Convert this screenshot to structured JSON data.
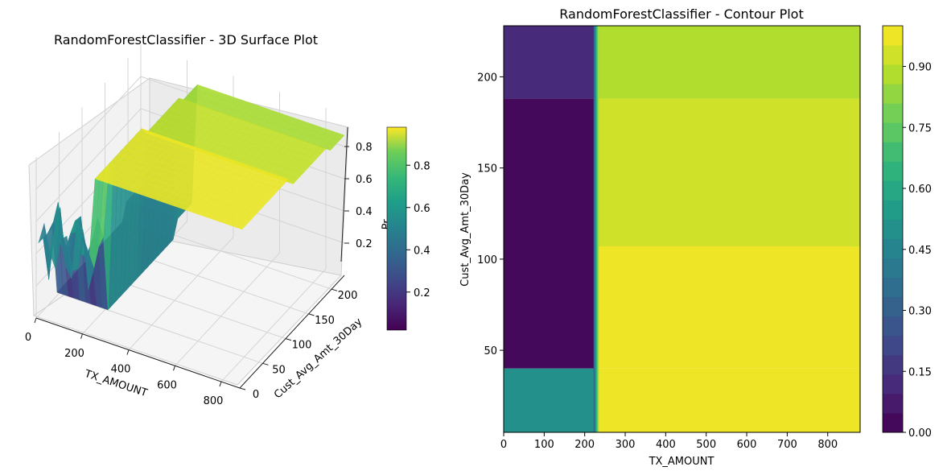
{
  "figure": {
    "left_title": "RandomForestClassifier - 3D Surface Plot",
    "right_title": "RandomForestClassifier - Contour Plot"
  },
  "chart_data": [
    {
      "type": "surface3d",
      "title": "RandomForestClassifier - 3D Surface Plot",
      "xlabel": "TX_AMOUNT",
      "ylabel": "Cust_Avg_Amt_30Day",
      "zlabel": "Pr",
      "colormap": "viridis",
      "xlim": [
        0,
        880
      ],
      "ylim": [
        5,
        228
      ],
      "zlim": [
        0,
        1
      ],
      "x_ticks": [
        "0",
        "200",
        "400",
        "600",
        "800"
      ],
      "y_ticks": [
        "0",
        "50",
        "100",
        "150",
        "200"
      ],
      "z_ticks": [
        "0.2",
        "0.4",
        "0.6",
        "0.8"
      ],
      "colorbar_ticks": [
        "0.2",
        "0.4",
        "0.6",
        "0.8"
      ],
      "colorbar_range": [
        0.02,
        0.98
      ]
    },
    {
      "type": "contour",
      "title": "RandomForestClassifier - Contour Plot",
      "xlabel": "TX_AMOUNT",
      "ylabel": "Cust_Avg_Amt_30Day",
      "colormap": "viridis",
      "xlim": [
        0,
        880
      ],
      "ylim": [
        5,
        228
      ],
      "x_ticks": [
        "0",
        "100",
        "200",
        "300",
        "400",
        "500",
        "600",
        "700",
        "800"
      ],
      "y_ticks": [
        "50",
        "100",
        "150",
        "200"
      ],
      "colorbar_ticks": [
        "0.00",
        "0.15",
        "0.30",
        "0.45",
        "0.60",
        "0.75",
        "0.90"
      ],
      "levels": 21,
      "level_range": [
        0,
        1
      ],
      "regions": [
        {
          "name": "low-amount-high-avg",
          "x": [
            0,
            225
          ],
          "y": [
            188,
            228
          ],
          "value": 0.12
        },
        {
          "name": "low-amount-mid-avg",
          "x": [
            0,
            225
          ],
          "y": [
            40,
            188
          ],
          "value": 0.01
        },
        {
          "name": "low-amount-low-avg",
          "x": [
            0,
            225
          ],
          "y": [
            5,
            40
          ],
          "value": 0.5
        },
        {
          "name": "high-amount-top",
          "x": [
            230,
            880
          ],
          "y": [
            188,
            228
          ],
          "value": 0.87
        },
        {
          "name": "high-amount-upper-mid",
          "x": [
            230,
            880
          ],
          "y": [
            107,
            188
          ],
          "value": 0.91
        },
        {
          "name": "high-amount-lower-mid",
          "x": [
            230,
            880
          ],
          "y": [
            40,
            107
          ],
          "value": 0.97
        },
        {
          "name": "high-amount-bottom",
          "x": [
            230,
            880
          ],
          "y": [
            5,
            40
          ],
          "value": 0.97
        }
      ],
      "decision_boundary_x": 228
    }
  ]
}
